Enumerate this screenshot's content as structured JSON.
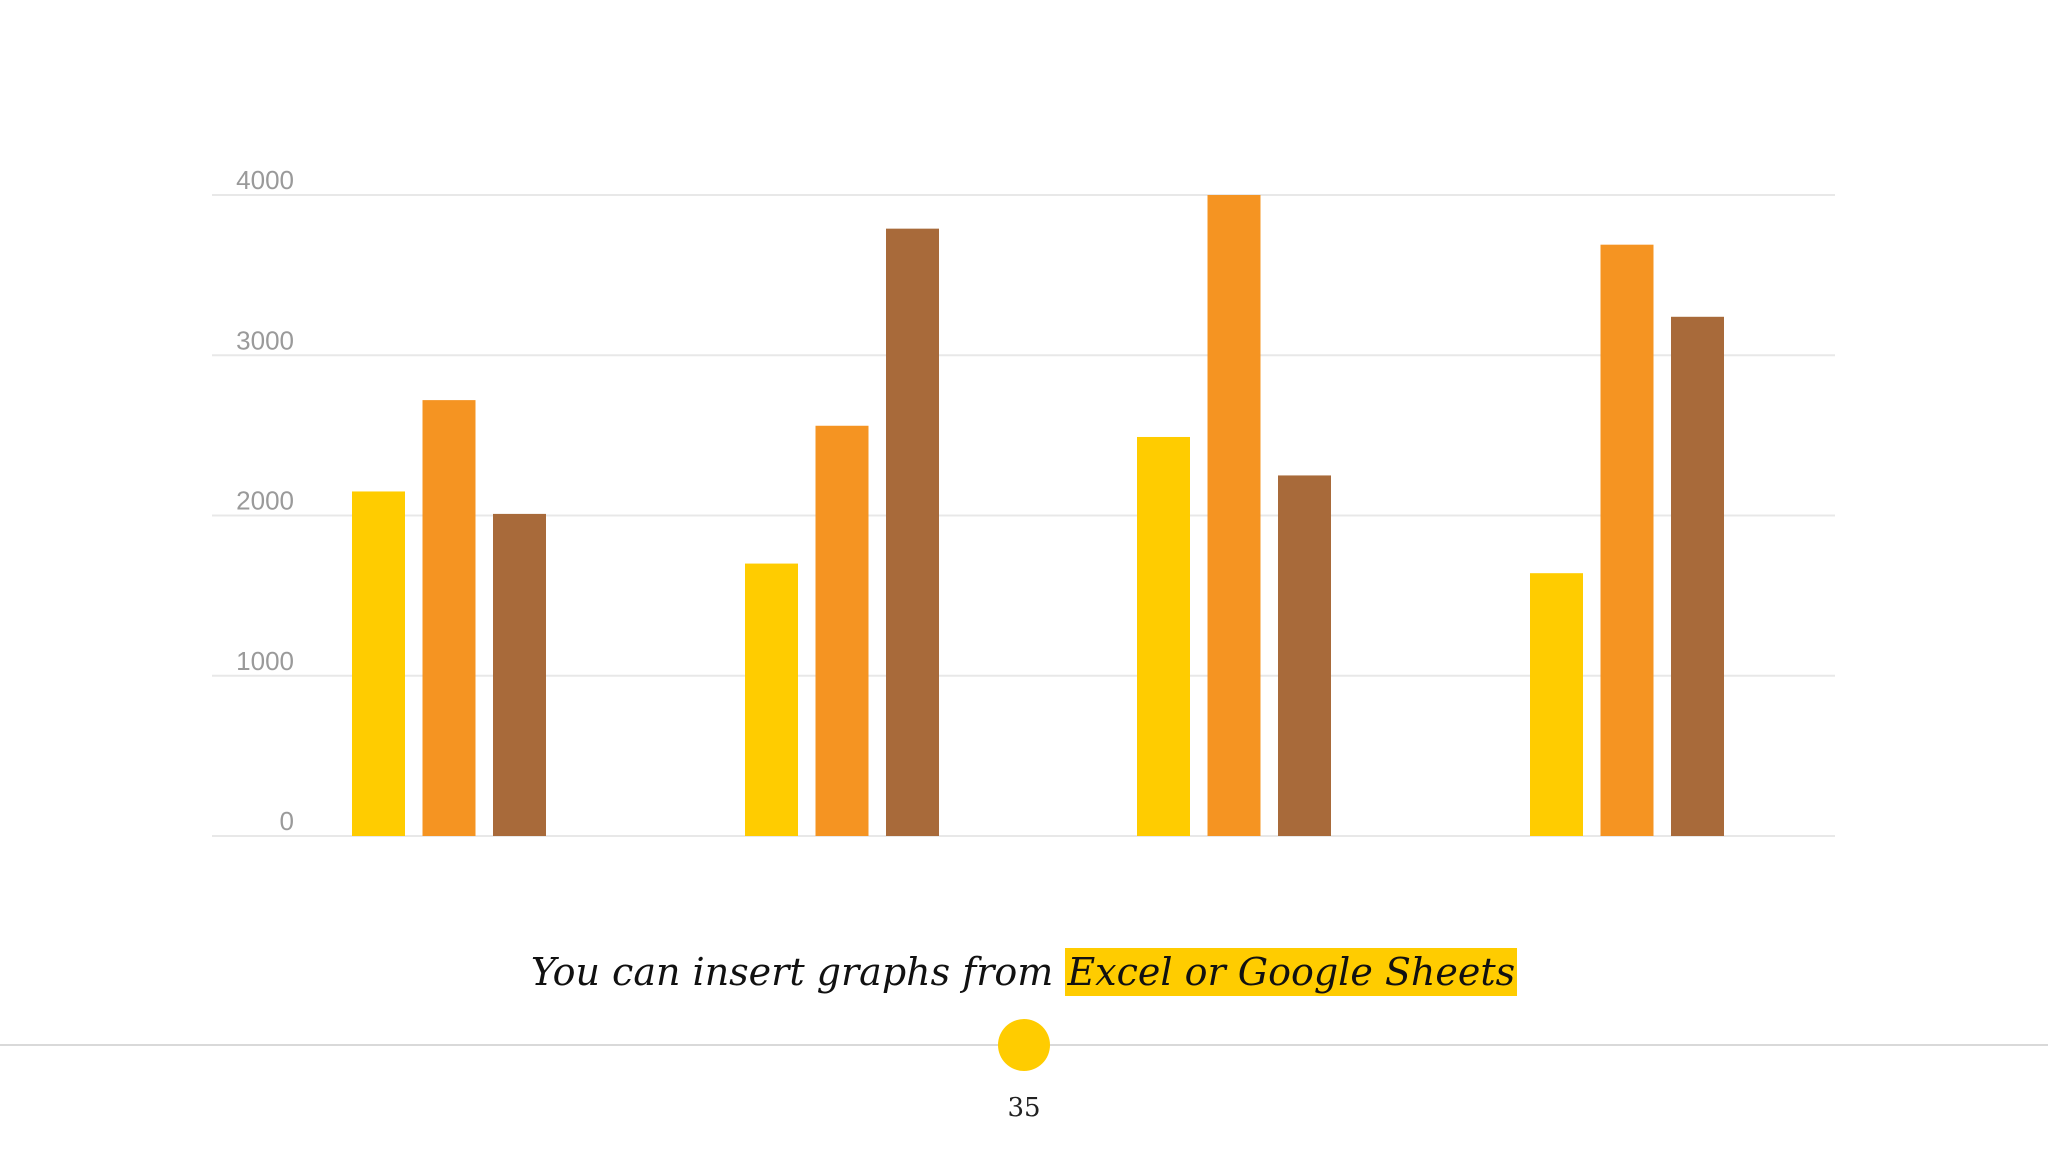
{
  "chart_data": {
    "type": "bar",
    "categories": [
      "",
      "",
      "",
      ""
    ],
    "series": [
      {
        "color": "#ffcc00",
        "values": [
          2150,
          1700,
          2490,
          1640
        ]
      },
      {
        "color": "#f59422",
        "values": [
          2720,
          2560,
          4000,
          3690
        ]
      },
      {
        "color": "#a86a3a",
        "values": [
          2010,
          3790,
          2250,
          3240
        ]
      }
    ],
    "yticks": [
      "0",
      "1000",
      "2000",
      "3000",
      "4000"
    ],
    "ylim": [
      0,
      4000
    ],
    "grid": true,
    "legend": "none",
    "title": "",
    "xlabel": "",
    "ylabel": ""
  },
  "caption": {
    "prefix": "You can insert graphs from ",
    "highlight": "Excel or Google Sheets"
  },
  "footer": {
    "page_number": "35"
  },
  "colors": {
    "accent": "#ffcc00",
    "grid": "#e8e8e8",
    "tick": "#9a9a9a"
  }
}
